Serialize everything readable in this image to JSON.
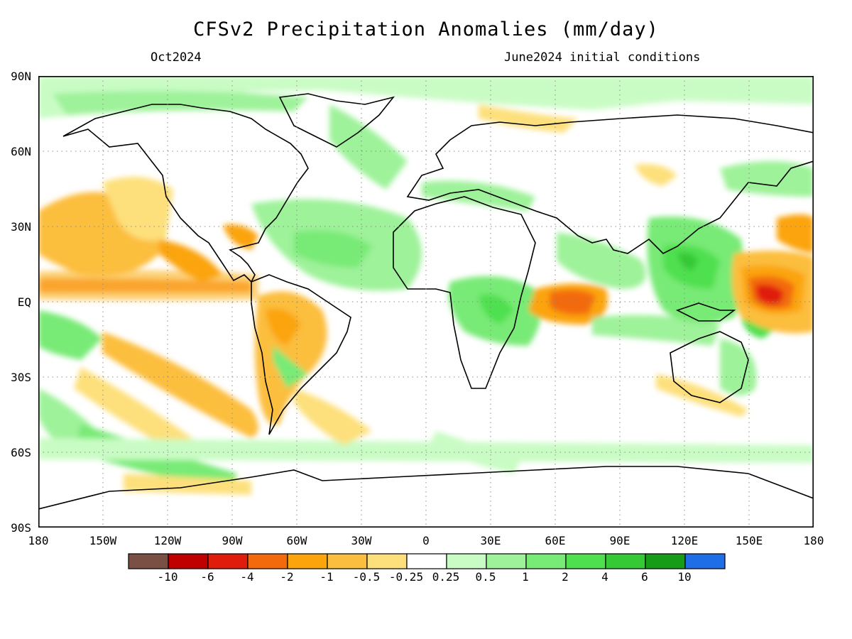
{
  "title": "CFSv2 Precipitation Anomalies (mm/day)",
  "subtitle_left": "Oct2024",
  "subtitle_right": "June2024 initial conditions",
  "lat_labels": [
    "90N",
    "60N",
    "30N",
    "EQ",
    "30S",
    "60S",
    "90S"
  ],
  "lon_labels": [
    "180",
    "150W",
    "120W",
    "90W",
    "60W",
    "30W",
    "0",
    "30E",
    "60E",
    "90E",
    "120E",
    "150E",
    "180"
  ],
  "colorbar": {
    "labels": [
      "-10",
      "-6",
      "-4",
      "-2",
      "-1",
      "-0.5",
      "-0.25",
      "0.25",
      "0.5",
      "1",
      "2",
      "4",
      "6",
      "10"
    ],
    "colors": [
      "#7b5044",
      "#c00000",
      "#e01c0c",
      "#f36a0c",
      "#fba40c",
      "#fcbe3e",
      "#fde07c",
      "#ffffff",
      "#c9fcc4",
      "#9ef29a",
      "#78ea76",
      "#4fe04f",
      "#35c935",
      "#179c17",
      "#1e6ee8"
    ]
  },
  "colors": {
    "land_outline": "#000000",
    "grid": "#8c8c8c"
  }
}
